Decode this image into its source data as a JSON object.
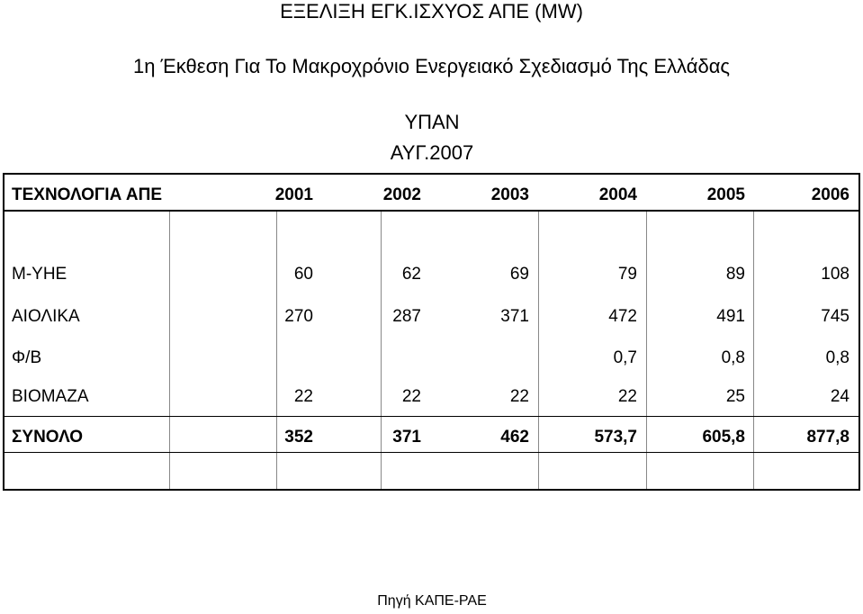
{
  "header": {
    "main_title": "ΕΞΕΛΙΞΗ ΕΓΚ.ΙΣΧΥΟΣ ΑΠΕ (MW)",
    "subtitle": "1η Έκθεση Για Το Μακροχρόνιο Ενεργειακό Σχεδιασμό Της Ελλάδας",
    "org": "ΥΠΑΝ",
    "date": "ΑΥΓ.2007"
  },
  "table": {
    "columns": [
      "ΤΕΧΝΟΛΟΓΙΑ ΑΠΕ",
      "2001",
      "2002",
      "2003",
      "2004",
      "2005",
      "2006"
    ],
    "rows": [
      {
        "label": "Μ-ΥΗΕ",
        "values": [
          "60",
          "62",
          "69",
          "79",
          "89",
          "108"
        ]
      },
      {
        "label": "ΑΙΟΛΙΚΑ",
        "values": [
          "270",
          "287",
          "371",
          "472",
          "491",
          "745"
        ]
      },
      {
        "label": "Φ/Β",
        "values": [
          "",
          "",
          "",
          "0,7",
          "0,8",
          "0,8"
        ]
      },
      {
        "label": "ΒΙΟΜΑΖΑ",
        "values": [
          "22",
          "22",
          "22",
          "22",
          "25",
          "24"
        ]
      }
    ],
    "total": {
      "label": "ΣΥΝΟΛΟ",
      "values": [
        "352",
        "371",
        "462",
        "573,7",
        "605,8",
        "877,8"
      ]
    }
  },
  "footer": {
    "source": "Πηγή ΚΑΠΕ-ΡΑΕ"
  }
}
